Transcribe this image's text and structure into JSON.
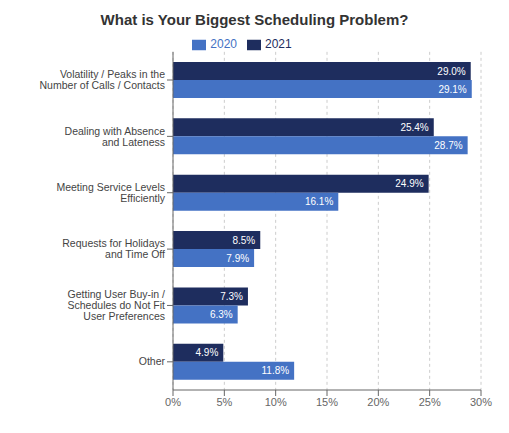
{
  "chart_data": {
    "type": "bar",
    "orientation": "horizontal",
    "title": "What is Your Biggest Scheduling Problem?",
    "categories": [
      "Volatility / Peaks in the\nNumber of Calls / Contacts",
      "Dealing with Absence\nand Lateness",
      "Meeting Service Levels\nEfficiently",
      "Requests for Holidays\nand Time Off",
      "Getting User Buy-in /\nSchedules do Not Fit\nUser Preferences",
      "Other"
    ],
    "series": [
      {
        "name": "2021",
        "color": "#1e2d5e",
        "values": [
          29.0,
          25.4,
          24.9,
          8.5,
          7.3,
          4.9
        ],
        "value_labels": [
          "29.0%",
          "25.4%",
          "24.9%",
          "8.5%",
          "7.3%",
          "4.9%"
        ]
      },
      {
        "name": "2020",
        "color": "#4472c4",
        "values": [
          29.1,
          28.7,
          16.1,
          7.9,
          6.3,
          11.8
        ],
        "value_labels": [
          "29.1%",
          "28.7%",
          "16.1%",
          "7.9%",
          "6.3%",
          "11.8%"
        ]
      }
    ],
    "xlim": [
      0,
      30
    ],
    "xticks": [
      {
        "value": 0,
        "label": "0%"
      },
      {
        "value": 5,
        "label": "5%"
      },
      {
        "value": 10,
        "label": "10%"
      },
      {
        "value": 15,
        "label": "15%"
      },
      {
        "value": 20,
        "label": "20%"
      },
      {
        "value": 25,
        "label": "25%"
      },
      {
        "value": 30,
        "label": "30%"
      }
    ],
    "grid": true,
    "data_labels": true,
    "legend": "top"
  }
}
